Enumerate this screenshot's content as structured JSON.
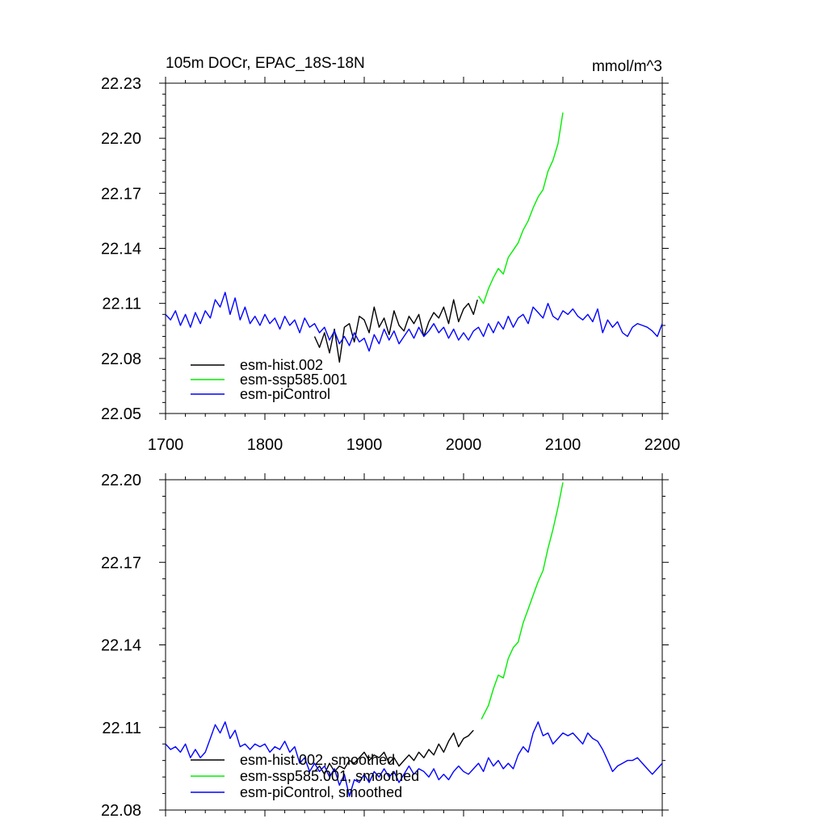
{
  "chart_data": [
    {
      "type": "line",
      "title": "105m DOCr, EPAC_18S-18N",
      "units": "mmol/m^3",
      "xlim": [
        1700,
        2200
      ],
      "ylim": [
        22.05,
        22.23
      ],
      "xticks": [
        1700,
        1800,
        1900,
        2000,
        2100,
        2200
      ],
      "xtick_labels": [
        "1700",
        "1800",
        "1900",
        "2000",
        "2100",
        "2200"
      ],
      "yticks": [
        22.05,
        22.08,
        22.11,
        22.14,
        22.17,
        22.2,
        22.23
      ],
      "ytick_labels": [
        "22.05",
        "22.08",
        "22.11",
        "22.14",
        "22.17",
        "22.20",
        "22.23"
      ],
      "legend_position": "bottom-left",
      "series": [
        {
          "name": "esm-hist.002",
          "color": "#000000",
          "x": [
            1850,
            1855,
            1860,
            1865,
            1870,
            1875,
            1880,
            1885,
            1890,
            1895,
            1900,
            1905,
            1910,
            1915,
            1920,
            1925,
            1930,
            1935,
            1940,
            1945,
            1950,
            1955,
            1960,
            1965,
            1970,
            1975,
            1980,
            1985,
            1990,
            1995,
            2000,
            2005,
            2010,
            2014
          ],
          "y": [
            22.092,
            22.086,
            22.094,
            22.083,
            22.096,
            22.078,
            22.097,
            22.099,
            22.089,
            22.103,
            22.101,
            22.094,
            22.108,
            22.097,
            22.102,
            22.093,
            22.106,
            22.098,
            22.095,
            22.103,
            22.099,
            22.104,
            22.092,
            22.1,
            22.105,
            22.102,
            22.108,
            22.099,
            22.112,
            22.1,
            22.107,
            22.11,
            22.104,
            22.112
          ]
        },
        {
          "name": "esm-ssp585.001",
          "color": "#00ee00",
          "x": [
            2015,
            2020,
            2025,
            2030,
            2035,
            2040,
            2045,
            2050,
            2055,
            2060,
            2065,
            2070,
            2075,
            2080,
            2085,
            2090,
            2095,
            2100
          ],
          "y": [
            22.114,
            22.11,
            22.118,
            22.124,
            22.129,
            22.126,
            22.135,
            22.139,
            22.143,
            22.15,
            22.155,
            22.162,
            22.168,
            22.172,
            22.182,
            22.188,
            22.197,
            22.214
          ]
        },
        {
          "name": "esm-piControl",
          "color": "#0000ff",
          "x": [
            1700,
            1705,
            1710,
            1715,
            1720,
            1725,
            1730,
            1735,
            1740,
            1745,
            1750,
            1755,
            1760,
            1765,
            1770,
            1775,
            1780,
            1785,
            1790,
            1795,
            1800,
            1805,
            1810,
            1815,
            1820,
            1825,
            1830,
            1835,
            1840,
            1845,
            1850,
            1855,
            1860,
            1865,
            1870,
            1875,
            1880,
            1885,
            1890,
            1895,
            1900,
            1905,
            1910,
            1915,
            1920,
            1925,
            1930,
            1935,
            1940,
            1945,
            1950,
            1955,
            1960,
            1965,
            1970,
            1975,
            1980,
            1985,
            1990,
            1995,
            2000,
            2005,
            2010,
            2015,
            2020,
            2025,
            2030,
            2035,
            2040,
            2045,
            2050,
            2055,
            2060,
            2065,
            2070,
            2075,
            2080,
            2085,
            2090,
            2095,
            2100,
            2105,
            2110,
            2115,
            2120,
            2125,
            2130,
            2135,
            2140,
            2145,
            2150,
            2155,
            2160,
            2165,
            2170,
            2175,
            2180,
            2185,
            2190,
            2195,
            2200
          ],
          "y": [
            22.104,
            22.101,
            22.106,
            22.098,
            22.104,
            22.097,
            22.105,
            22.099,
            22.106,
            22.102,
            22.112,
            22.108,
            22.116,
            22.104,
            22.113,
            22.101,
            22.108,
            22.099,
            22.103,
            22.098,
            22.104,
            22.099,
            22.102,
            22.096,
            22.103,
            22.098,
            22.101,
            22.094,
            22.102,
            22.097,
            22.099,
            22.094,
            22.097,
            22.09,
            22.095,
            22.088,
            22.092,
            22.087,
            22.094,
            22.089,
            22.091,
            22.084,
            22.093,
            22.088,
            22.096,
            22.09,
            22.095,
            22.088,
            22.092,
            22.096,
            22.091,
            22.097,
            22.092,
            22.095,
            22.099,
            22.094,
            22.097,
            22.091,
            22.096,
            22.09,
            22.094,
            22.09,
            22.095,
            22.097,
            22.092,
            22.099,
            22.094,
            22.1,
            22.096,
            22.103,
            22.097,
            22.102,
            22.104,
            22.099,
            22.108,
            22.105,
            22.102,
            22.11,
            22.103,
            22.101,
            22.106,
            22.104,
            22.107,
            22.103,
            22.101,
            22.104,
            22.1,
            22.107,
            22.094,
            22.101,
            22.097,
            22.1,
            22.094,
            22.092,
            22.097,
            22.099,
            22.098,
            22.097,
            22.095,
            22.092,
            22.099
          ]
        }
      ]
    },
    {
      "type": "line",
      "title": "",
      "xlim": [
        1700,
        2200
      ],
      "ylim": [
        22.08,
        22.2
      ],
      "xticks": [
        1700,
        1800,
        1900,
        2000,
        2100,
        2200
      ],
      "yticks": [
        22.08,
        22.11,
        22.14,
        22.17,
        22.2
      ],
      "ytick_labels": [
        "22.08",
        "22.11",
        "22.14",
        "22.17",
        "22.20"
      ],
      "legend_position": "bottom-left",
      "series": [
        {
          "name": "esm-hist.002, smoothed",
          "color": "#000000",
          "x": [
            1850,
            1855,
            1860,
            1865,
            1870,
            1875,
            1880,
            1885,
            1890,
            1895,
            1900,
            1905,
            1910,
            1915,
            1920,
            1925,
            1930,
            1935,
            1940,
            1945,
            1950,
            1955,
            1960,
            1965,
            1970,
            1975,
            1980,
            1985,
            1990,
            1995,
            2000,
            2005,
            2010
          ],
          "y": [
            22.094,
            22.096,
            22.093,
            22.097,
            22.094,
            22.096,
            22.095,
            22.098,
            22.097,
            22.099,
            22.101,
            22.098,
            22.1,
            22.099,
            22.101,
            22.097,
            22.099,
            22.096,
            22.098,
            22.1,
            22.098,
            22.101,
            22.099,
            22.102,
            22.1,
            22.104,
            22.101,
            22.105,
            22.108,
            22.103,
            22.106,
            22.107,
            22.109
          ]
        },
        {
          "name": "esm-ssp585.001, smoothed",
          "color": "#00ee00",
          "x": [
            2018,
            2025,
            2030,
            2035,
            2040,
            2045,
            2050,
            2055,
            2060,
            2065,
            2070,
            2075,
            2080,
            2085,
            2090,
            2095,
            2100
          ],
          "y": [
            22.113,
            22.118,
            22.124,
            22.129,
            22.128,
            22.135,
            22.139,
            22.141,
            22.148,
            22.153,
            22.158,
            22.163,
            22.167,
            22.175,
            22.182,
            22.19,
            22.199
          ]
        },
        {
          "name": "esm-piControl, smoothed",
          "color": "#0000ff",
          "x": [
            1700,
            1705,
            1710,
            1715,
            1720,
            1725,
            1730,
            1735,
            1740,
            1745,
            1750,
            1755,
            1760,
            1765,
            1770,
            1775,
            1780,
            1785,
            1790,
            1795,
            1800,
            1805,
            1810,
            1815,
            1820,
            1825,
            1830,
            1835,
            1840,
            1845,
            1850,
            1855,
            1860,
            1865,
            1870,
            1875,
            1880,
            1885,
            1890,
            1895,
            1900,
            1905,
            1910,
            1915,
            1920,
            1925,
            1930,
            1935,
            1940,
            1945,
            1950,
            1955,
            1960,
            1965,
            1970,
            1975,
            1980,
            1985,
            1990,
            1995,
            2000,
            2005,
            2010,
            2015,
            2020,
            2025,
            2030,
            2035,
            2040,
            2045,
            2050,
            2055,
            2060,
            2065,
            2070,
            2075,
            2080,
            2085,
            2090,
            2095,
            2100,
            2105,
            2110,
            2115,
            2120,
            2125,
            2130,
            2135,
            2140,
            2145,
            2150,
            2155,
            2160,
            2165,
            2170,
            2175,
            2180,
            2185,
            2190,
            2195,
            2200
          ],
          "y": [
            22.104,
            22.102,
            22.103,
            22.101,
            22.104,
            22.099,
            22.102,
            22.099,
            22.101,
            22.106,
            22.111,
            22.108,
            22.112,
            22.106,
            22.109,
            22.103,
            22.104,
            22.102,
            22.104,
            22.103,
            22.104,
            22.101,
            22.103,
            22.102,
            22.105,
            22.101,
            22.103,
            22.097,
            22.099,
            22.094,
            22.097,
            22.094,
            22.096,
            22.092,
            22.095,
            22.089,
            22.093,
            22.085,
            22.091,
            22.09,
            22.093,
            22.09,
            22.094,
            22.092,
            22.095,
            22.092,
            22.094,
            22.09,
            22.093,
            22.096,
            22.093,
            22.095,
            22.094,
            22.092,
            22.095,
            22.091,
            22.093,
            22.091,
            22.094,
            22.096,
            22.094,
            22.093,
            22.095,
            22.097,
            22.094,
            22.099,
            22.096,
            22.098,
            22.095,
            22.097,
            22.095,
            22.1,
            22.103,
            22.101,
            22.108,
            22.112,
            22.107,
            22.108,
            22.104,
            22.106,
            22.108,
            22.107,
            22.108,
            22.106,
            22.104,
            22.108,
            22.106,
            22.105,
            22.102,
            22.098,
            22.094,
            22.096,
            22.097,
            22.098,
            22.098,
            22.099,
            22.097,
            22.095,
            22.093,
            22.095,
            22.097
          ]
        }
      ]
    }
  ]
}
